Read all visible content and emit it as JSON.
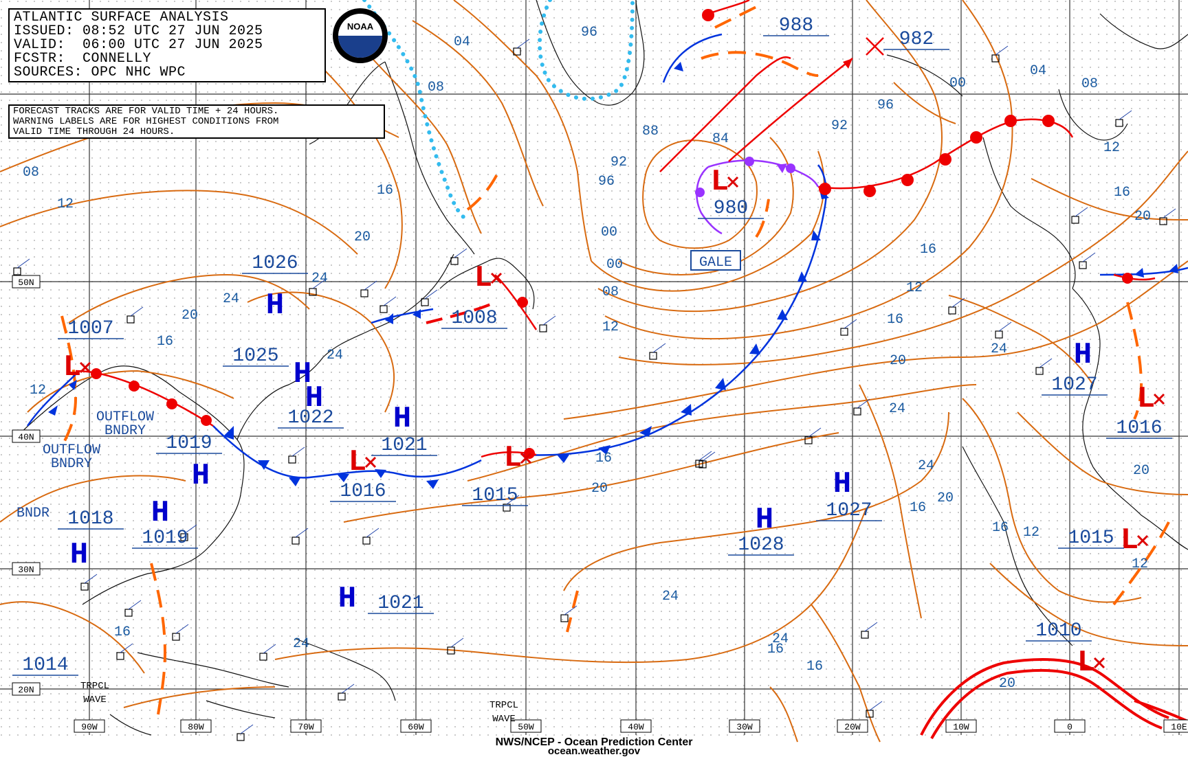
{
  "header": {
    "title": "ATLANTIC SURFACE ANALYSIS",
    "issued": "ISSUED: 08:52 UTC 27 JUN 2025",
    "valid": "VALID:  06:00 UTC 27 JUN 2025",
    "forecaster": "FCSTR:  CONNELLY",
    "sources": "SOURCES: OPC NHC WPC"
  },
  "notes": [
    "FORECAST TRACKS ARE FOR VALID TIME + 24 HOURS.",
    "WARNING LABELS ARE FOR HIGHEST CONDITIONS FROM",
    "VALID TIME THROUGH 24 HOURS."
  ],
  "logo": {
    "text": "NOAA"
  },
  "credits": {
    "agency": "NWS/NCEP - Ocean Prediction Center",
    "url": "ocean.weather.gov"
  },
  "colors": {
    "isobar": "#d86a10",
    "label": "#1a3a8c",
    "high": "#0000cc",
    "low": "#dd0000",
    "cold_front": "#0033dd",
    "warm_front": "#ee0000",
    "occluded": "#9933ff",
    "ice_edge": "#33bbee",
    "trough": "#ff6600",
    "grid": "#222222",
    "dots": "#bbbbbb"
  },
  "grid_labels": {
    "lon": [
      "90W",
      "80W",
      "70W",
      "60W",
      "50W",
      "40W",
      "30W",
      "20W",
      "10W",
      "0",
      "10E"
    ],
    "lat": [
      "50N",
      "40N",
      "30N",
      "20N"
    ]
  },
  "pressure_centers": [
    {
      "kind": "L",
      "value": "1007"
    },
    {
      "kind": "L",
      "value": "1008"
    },
    {
      "kind": "L",
      "value": "980"
    },
    {
      "kind": "L",
      "value": "988"
    },
    {
      "kind": "L",
      "value": "982"
    },
    {
      "kind": "L",
      "value": "1016"
    },
    {
      "kind": "L",
      "value": "1015"
    },
    {
      "kind": "L",
      "value": "1016"
    },
    {
      "kind": "L",
      "value": "1015"
    },
    {
      "kind": "L",
      "value": "1010"
    },
    {
      "kind": "L",
      "value": "1014"
    },
    {
      "kind": "H",
      "value": "1026"
    },
    {
      "kind": "H",
      "value": "1025"
    },
    {
      "kind": "H",
      "value": "1022"
    },
    {
      "kind": "H",
      "value": "1021"
    },
    {
      "kind": "H",
      "value": "1019"
    },
    {
      "kind": "H",
      "value": "1019"
    },
    {
      "kind": "H",
      "value": "1018"
    },
    {
      "kind": "H",
      "value": "1021"
    },
    {
      "kind": "H",
      "value": "1028"
    },
    {
      "kind": "H",
      "value": "1027"
    },
    {
      "kind": "H",
      "value": "1027"
    }
  ],
  "text_labels": [
    "GALE",
    "OUTFLOW BNDRY",
    "OUTFLOW BNDRY",
    "BNDR",
    "TRPCL WAVE",
    "TRPCL WAVE"
  ],
  "isobar_labels": [
    "04",
    "08",
    "12",
    "16",
    "20",
    "24",
    "00",
    "96",
    "92",
    "88",
    "84"
  ]
}
